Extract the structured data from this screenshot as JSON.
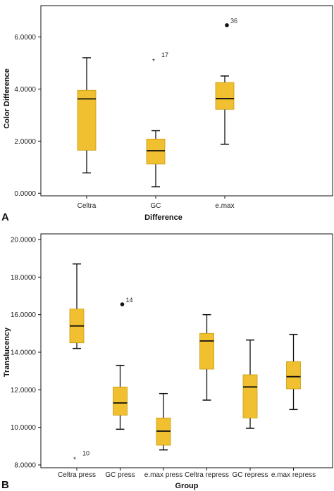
{
  "panel_letters": [
    "A",
    "B"
  ],
  "colors": {
    "box_fill": "#f0c030",
    "box_stroke": "#c99a10",
    "line": "#111111"
  },
  "chart_data": [
    {
      "type": "boxplot",
      "panel": "A",
      "xlabel": "Difference",
      "ylabel": "Color Difference",
      "ylim": [
        -0.1,
        7.2
      ],
      "yticks": [
        "0.0000",
        "2.0000",
        "4.0000",
        "6.0000"
      ],
      "ytick_values": [
        0,
        2,
        4,
        6
      ],
      "categories": [
        "Celtra",
        "GC",
        "e.max"
      ],
      "boxes": [
        {
          "whisker_low": 0.78,
          "q1": 1.65,
          "median": 3.62,
          "q3": 3.95,
          "whisker_high": 5.2
        },
        {
          "whisker_low": 0.25,
          "q1": 1.12,
          "median": 1.63,
          "q3": 2.08,
          "whisker_high": 2.4
        },
        {
          "whisker_low": 1.88,
          "q1": 3.22,
          "median": 3.63,
          "q3": 4.25,
          "whisker_high": 4.5
        }
      ],
      "outliers": [
        {
          "category": "GC",
          "value": 5.15,
          "label": "17",
          "marker": "star"
        },
        {
          "category": "e.max",
          "value": 6.45,
          "label": "36",
          "marker": "dot"
        }
      ],
      "grid": false
    },
    {
      "type": "boxplot",
      "panel": "B",
      "xlabel": "Group",
      "ylabel": "Translucency",
      "ylim": [
        7.85,
        20.3
      ],
      "yticks": [
        "8.0000",
        "10.0000",
        "12.0000",
        "14.0000",
        "16.0000",
        "18.0000",
        "20.0000"
      ],
      "ytick_values": [
        8,
        10,
        12,
        14,
        16,
        18,
        20
      ],
      "categories": [
        "Celtra press",
        "GC press",
        "e.max press",
        "Celtra repress",
        "GC repress",
        "e.max repress"
      ],
      "boxes": [
        {
          "whisker_low": 14.2,
          "q1": 14.5,
          "median": 15.4,
          "q3": 16.3,
          "whisker_high": 18.7
        },
        {
          "whisker_low": 9.9,
          "q1": 10.65,
          "median": 11.3,
          "q3": 12.15,
          "whisker_high": 13.3
        },
        {
          "whisker_low": 8.8,
          "q1": 9.05,
          "median": 9.8,
          "q3": 10.5,
          "whisker_high": 11.8
        },
        {
          "whisker_low": 11.45,
          "q1": 13.1,
          "median": 14.6,
          "q3": 15.0,
          "whisker_high": 16.0
        },
        {
          "whisker_low": 9.95,
          "q1": 10.5,
          "median": 12.15,
          "q3": 12.8,
          "whisker_high": 14.65
        },
        {
          "whisker_low": 10.95,
          "q1": 12.05,
          "median": 12.7,
          "q3": 13.5,
          "whisker_high": 14.95
        }
      ],
      "outliers": [
        {
          "category": "GC press",
          "value": 16.55,
          "label": "14",
          "marker": "dot"
        },
        {
          "category": "Celtra press",
          "value": 8.4,
          "label": "10",
          "marker": "star"
        }
      ],
      "grid": false
    }
  ]
}
